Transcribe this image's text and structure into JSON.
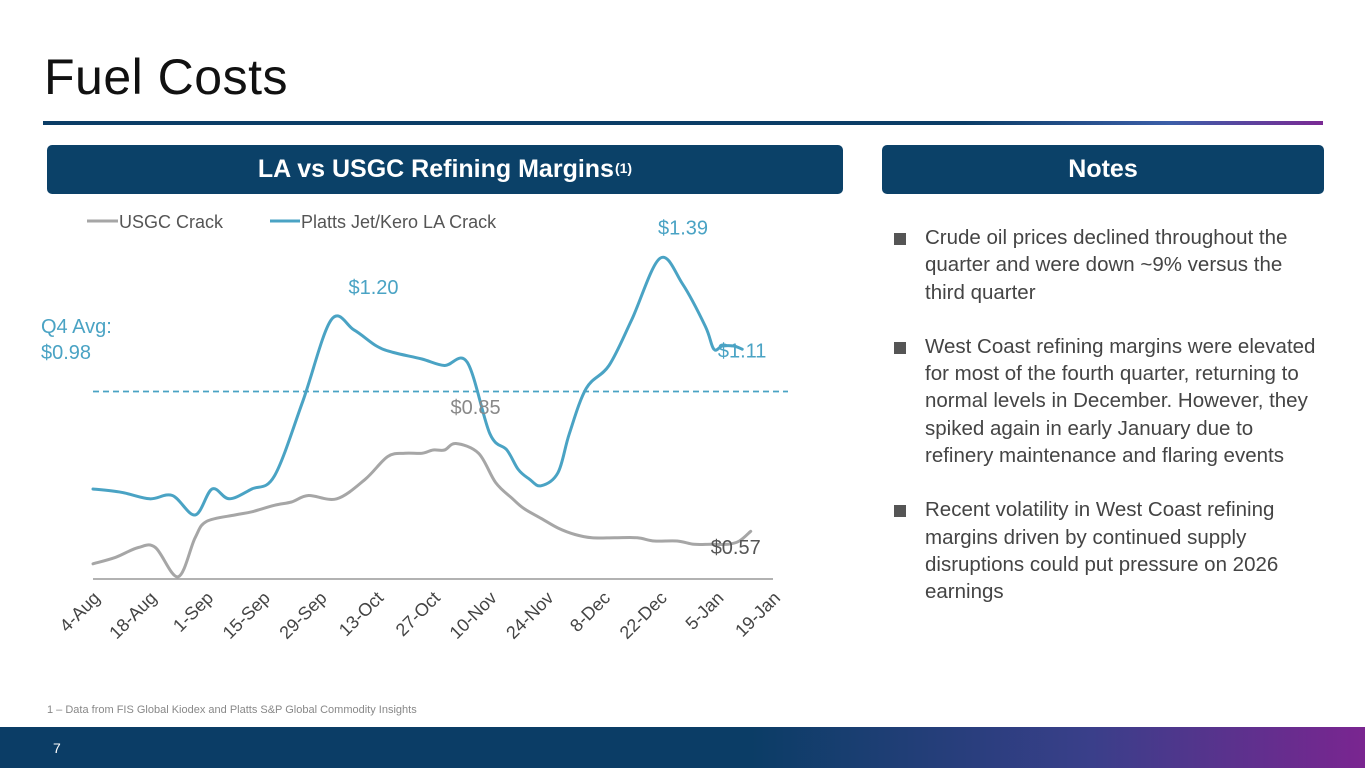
{
  "page": {
    "title": "Fuel Costs",
    "page_number": "7",
    "footnote": "1 – Data from FIS Global Kiodex and Platts S&P Global Commodity Insights"
  },
  "chart_panel": {
    "header": "LA vs USGC Refining Margins",
    "header_sup": "(1)"
  },
  "notes_panel": {
    "header": "Notes",
    "items": [
      "Crude oil prices declined throughout the quarter and were down ~9% versus the third quarter",
      "West Coast refining margins were elevated for most of the fourth quarter, returning to normal levels in December. However, they spiked again in early January due to refinery maintenance and flaring events",
      "Recent volatility in West Coast refining margins driven by continued supply disruptions could put pressure on 2026 earnings"
    ]
  },
  "colors": {
    "usgc": "#a6a6a6",
    "platts": "#4aa3c4",
    "header_bg": "#0b4168"
  },
  "chart_data": {
    "type": "line",
    "title": "LA vs USGC Refining Margins",
    "xlabel": "",
    "ylabel": "",
    "ylim": [
      0.35,
      1.5
    ],
    "legend_position": "top-left",
    "grid": false,
    "tick_labels": [
      "4-Aug",
      "18-Aug",
      "1-Sep",
      "15-Sep",
      "29-Sep",
      "13-Oct",
      "27-Oct",
      "10-Nov",
      "24-Nov",
      "8-Dec",
      "22-Dec",
      "5-Jan",
      "19-Jan"
    ],
    "series": [
      {
        "name": "USGC Crack",
        "color": "#a6a6a6",
        "x": [
          0,
          0.4,
          0.8,
          1.1,
          1.5,
          1.8,
          2.0,
          2.5,
          2.8,
          3.2,
          3.5,
          3.8,
          4.3,
          4.8,
          5.2,
          5.5,
          5.8,
          6.0,
          6.2,
          6.4,
          6.8,
          7.1,
          7.4,
          7.6,
          7.9,
          8.2,
          8.5,
          8.8,
          9.2,
          9.6,
          9.9,
          10.3,
          10.6,
          10.9,
          11.2,
          11.4,
          11.6
        ],
        "y": [
          0.45,
          0.47,
          0.5,
          0.5,
          0.41,
          0.53,
          0.58,
          0.6,
          0.61,
          0.63,
          0.64,
          0.66,
          0.65,
          0.71,
          0.78,
          0.79,
          0.79,
          0.8,
          0.8,
          0.82,
          0.79,
          0.7,
          0.65,
          0.62,
          0.59,
          0.56,
          0.54,
          0.53,
          0.53,
          0.53,
          0.52,
          0.52,
          0.51,
          0.51,
          0.51,
          0.52,
          0.55
        ]
      },
      {
        "name": "Platts Jet/Kero LA Crack",
        "color": "#4aa3c4",
        "x": [
          0,
          0.5,
          1.0,
          1.4,
          1.8,
          2.1,
          2.4,
          2.8,
          3.2,
          3.7,
          4.2,
          4.6,
          5.0,
          5.3,
          5.8,
          6.2,
          6.6,
          7.0,
          7.3,
          7.5,
          7.7,
          7.9,
          8.2,
          8.4,
          8.7,
          9.1,
          9.5,
          10.0,
          10.4,
          10.8,
          10.95,
          11.1,
          11.3,
          11.45
        ],
        "y": [
          0.68,
          0.67,
          0.65,
          0.66,
          0.6,
          0.68,
          0.65,
          0.68,
          0.72,
          0.95,
          1.2,
          1.17,
          1.12,
          1.1,
          1.08,
          1.06,
          1.07,
          0.85,
          0.8,
          0.74,
          0.71,
          0.69,
          0.73,
          0.85,
          0.99,
          1.06,
          1.2,
          1.39,
          1.31,
          1.18,
          1.11,
          1.12,
          1.12,
          1.11
        ]
      }
    ],
    "reference_line": {
      "name": "Q4 Avg",
      "value": 0.98,
      "style": "dashed",
      "color": "#4aa3c4"
    },
    "annotations": [
      {
        "text": "Q4 Avg:",
        "color": "#4aa3c4"
      },
      {
        "text": "$0.98",
        "color": "#4aa3c4"
      },
      {
        "text": "$1.20",
        "color": "#4aa3c4",
        "x": 5.0,
        "y": 1.2
      },
      {
        "text": "$1.39",
        "color": "#4aa3c4",
        "x": 10.0,
        "y": 1.39
      },
      {
        "text": "$1.11",
        "color": "#4aa3c4",
        "x": 10.95,
        "y": 1.11
      },
      {
        "text": "$0.85",
        "color": "#888888",
        "x": 6.8,
        "y": 0.85
      },
      {
        "text": "$0.57",
        "color": "#555555",
        "x": 11.0,
        "y": 0.57
      }
    ]
  }
}
